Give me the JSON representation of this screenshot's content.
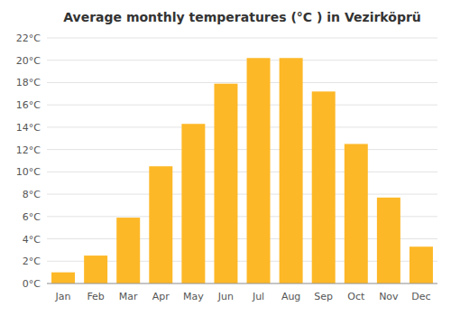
{
  "chart_data": {
    "type": "bar",
    "title": "Average monthly temperatures (°C ) in Vezirköprü",
    "categories": [
      "Jan",
      "Feb",
      "Mar",
      "Apr",
      "May",
      "Jun",
      "Jul",
      "Aug",
      "Sep",
      "Oct",
      "Nov",
      "Dec"
    ],
    "values": [
      1.0,
      2.5,
      5.9,
      10.5,
      14.3,
      17.9,
      20.2,
      20.2,
      17.2,
      12.5,
      7.7,
      3.3
    ],
    "color": "#FDB827",
    "ylim": [
      0,
      22
    ],
    "yticks": [
      {
        "value": 0,
        "label": "0°C"
      },
      {
        "value": 2,
        "label": "2°C"
      },
      {
        "value": 4,
        "label": "4°C"
      },
      {
        "value": 6,
        "label": "6°C"
      },
      {
        "value": 8,
        "label": "8°C"
      },
      {
        "value": 10,
        "label": "10°C"
      },
      {
        "value": 12,
        "label": "12°C"
      },
      {
        "value": 14,
        "label": "14°C"
      },
      {
        "value": 16,
        "label": "16°C"
      },
      {
        "value": 18,
        "label": "18°C"
      },
      {
        "value": 20,
        "label": "20°C"
      },
      {
        "value": 22,
        "label": "22°C"
      }
    ],
    "grid": true
  }
}
